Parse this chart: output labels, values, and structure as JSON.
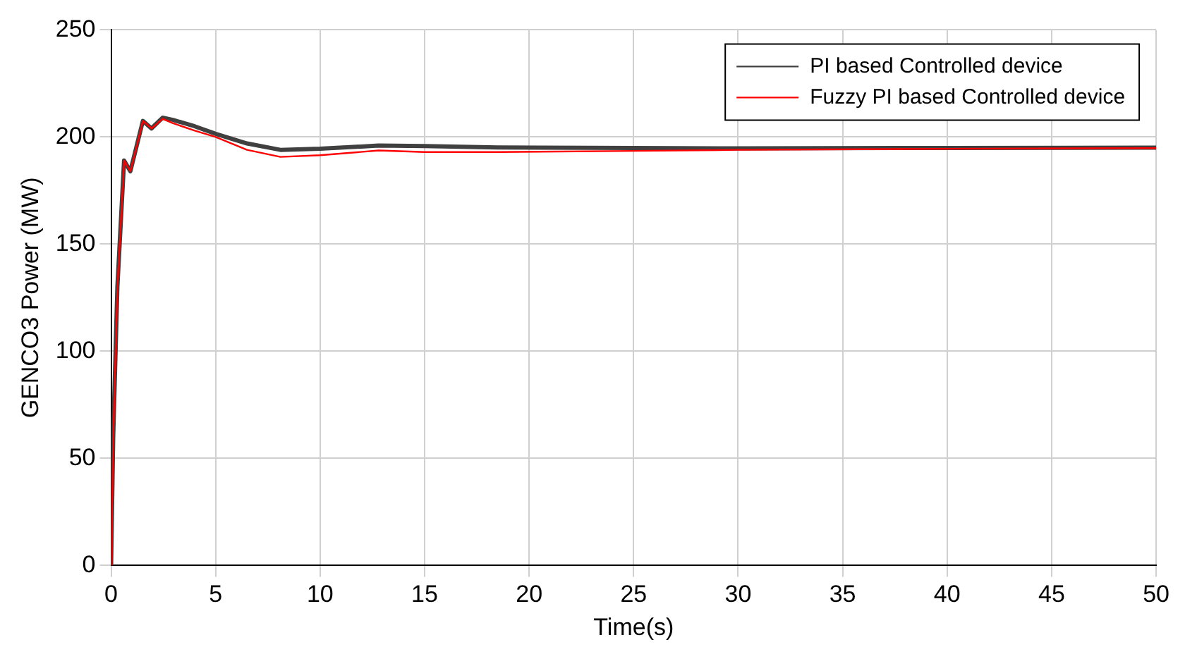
{
  "chart_data": {
    "type": "line",
    "xlabel": "Time(s)",
    "ylabel": "GENCO3 Power (MW)",
    "xlim": [
      0,
      50
    ],
    "ylim": [
      0,
      250
    ],
    "xticks": [
      0,
      5,
      10,
      15,
      20,
      25,
      30,
      35,
      40,
      45,
      50
    ],
    "yticks": [
      0,
      50,
      100,
      150,
      200,
      250
    ],
    "grid": true,
    "legend": "top right",
    "marker": "none",
    "line_style": "solid",
    "series": [
      {
        "name": "PI based Controlled device",
        "color": "#404040",
        "x": [
          0,
          0.1,
          0.3,
          0.62,
          0.92,
          1.52,
          1.93,
          2.46,
          2.96,
          4,
          5,
          6.5,
          8.1,
          10,
          12.8,
          15,
          18.5,
          25,
          30,
          40,
          50
        ],
        "values": [
          0,
          60,
          130,
          189,
          184,
          207.5,
          204,
          209,
          208,
          205,
          201.5,
          197,
          194,
          194.5,
          196,
          195.8,
          195.1,
          194.9,
          194.7,
          194.9,
          195
        ]
      },
      {
        "name": "Fuzzy PI based Controlled device",
        "color": "#ff0000",
        "x": [
          0,
          0.1,
          0.3,
          0.62,
          0.92,
          1.52,
          1.93,
          2.46,
          2.96,
          4,
          5,
          6.5,
          8.1,
          10,
          12.8,
          15,
          18.5,
          25,
          30,
          40,
          50
        ],
        "values": [
          0,
          60,
          130,
          189,
          184,
          207.5,
          204,
          208.5,
          206.4,
          203,
          200,
          194,
          190.7,
          191.5,
          193.7,
          193,
          193,
          193.5,
          194,
          194.5,
          194.8
        ]
      }
    ]
  }
}
